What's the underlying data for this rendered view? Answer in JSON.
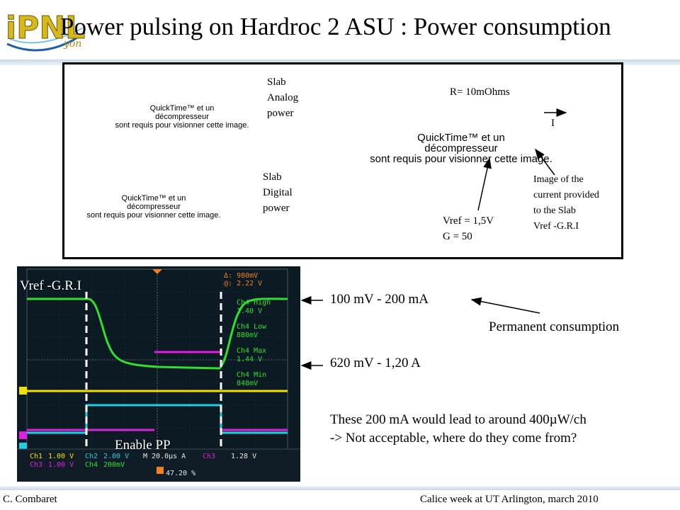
{
  "title": "Power pulsing on Hardroc 2 ASU : Power consumption",
  "logo": {
    "letters": "IPNL",
    "subtext": "yon"
  },
  "schematic": {
    "quicktime_line1": "QuickTime™ et un",
    "quicktime_line2": "décompresseur",
    "quicktime_line3": "sont requis pour visionner cette image.",
    "slab_analog": [
      "Slab",
      "Analog",
      "power"
    ],
    "slab_digital": [
      "Slab",
      "Digital",
      "power"
    ],
    "resistor": "R= 10mOhms",
    "current_symbol": "I",
    "vref_gain": [
      "Vref = 1,5V",
      "G = 50"
    ],
    "image_note": [
      "Image of the",
      "current provided",
      "to the Slab",
      "Vref -G.R.I"
    ]
  },
  "scope": {
    "label_top": "Vref -G.R.I",
    "label_bottom": "Enable PP",
    "delta": "980mV",
    "at": "2.22 V",
    "meas": [
      {
        "name": "Ch4 High",
        "value": "1.40 V"
      },
      {
        "name": "Ch4 Low",
        "value": "880mV"
      },
      {
        "name": "Ch4 Max",
        "value": "1.44 V"
      },
      {
        "name": "Ch4 Min",
        "value": "848mV"
      }
    ],
    "status_row1": [
      "Ch1",
      "1.00 V",
      "Ch2",
      "2.00 V",
      "M 20.0µs A",
      "Ch3",
      "1.28 V"
    ],
    "status_row2": [
      "Ch3",
      "1.00 V",
      "Ch4",
      "200mV"
    ],
    "trigger_pos": "47.20 %",
    "channel_colors": {
      "ch1": "#f0e000",
      "ch2": "#20d0e0",
      "ch3": "#e020e0",
      "ch4": "#30e030"
    }
  },
  "annotations": {
    "high": "100 mV -  200 mA",
    "permanent": "Permanent consumption",
    "low": "620 mV - 1,20 A",
    "note_line1": "These 200 mA would lead to around 400µW/ch",
    "note_line2": "-> Not acceptable, where do they come from?"
  },
  "footer": {
    "author": "C. Combaret",
    "event": "Calice week at UT Arlington, march 2010"
  }
}
